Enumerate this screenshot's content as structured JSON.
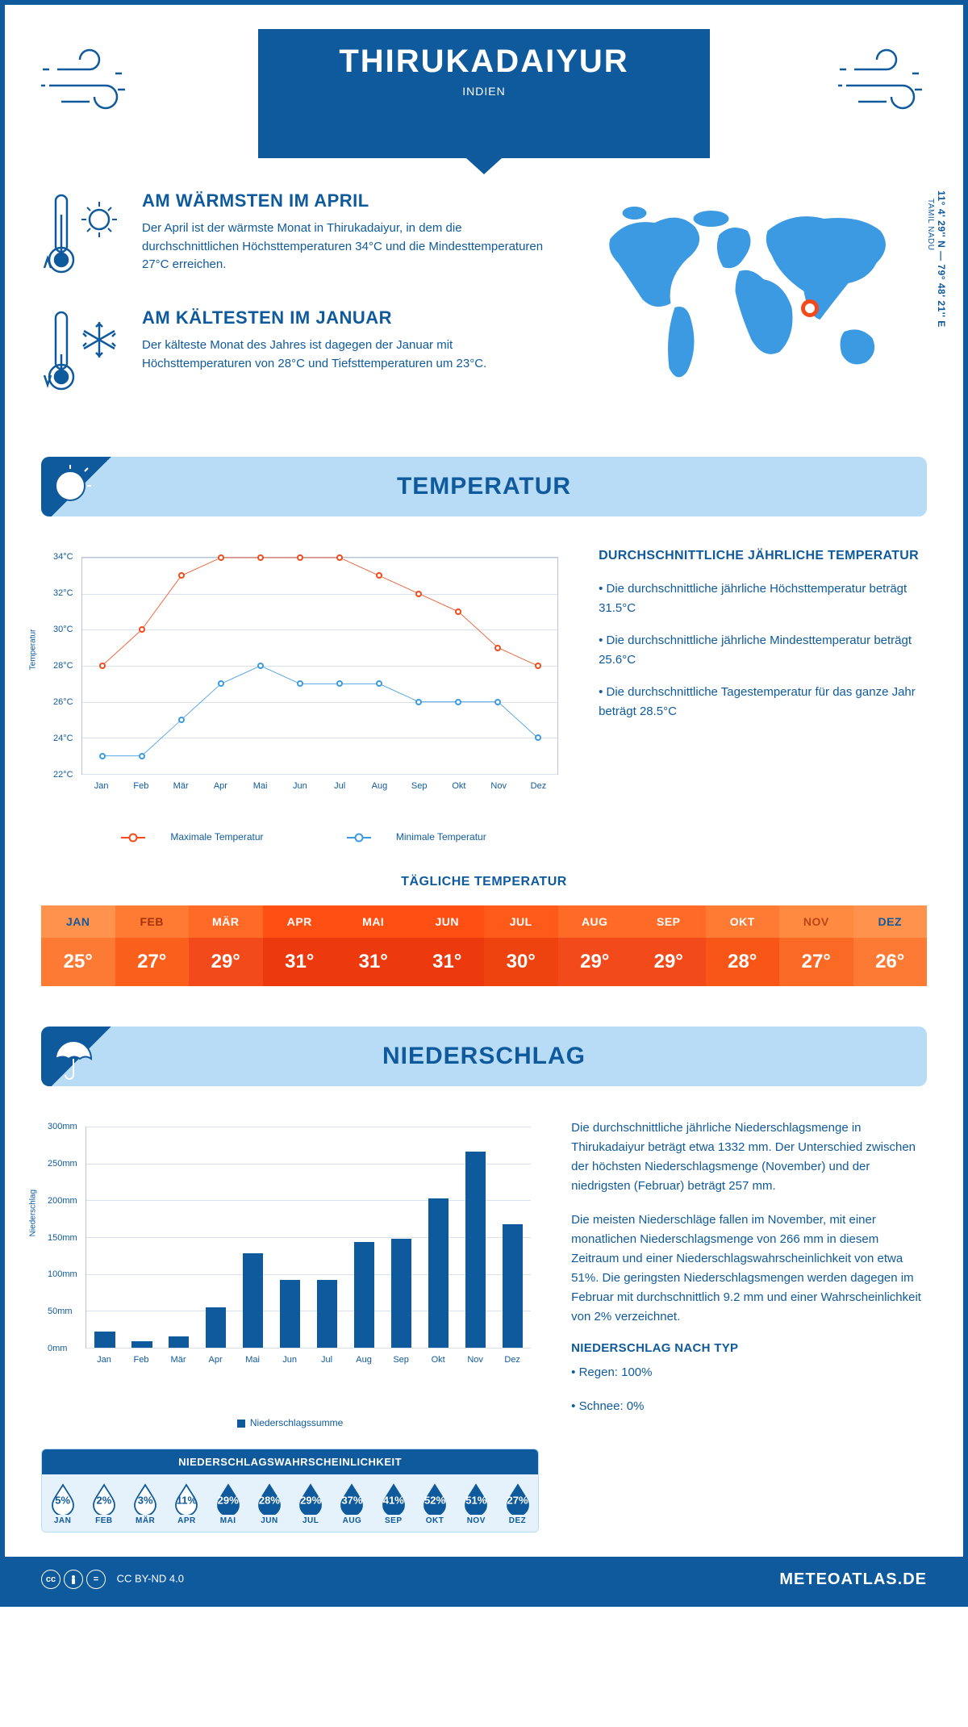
{
  "header": {
    "title": "THIRUKADAIYUR",
    "subtitle": "INDIEN"
  },
  "info_blocks": {
    "warm": {
      "title": "AM WÄRMSTEN IM APRIL",
      "text": "Der April ist der wärmste Monat in Thirukadaiyur, in dem die durchschnittlichen Höchsttemperaturen 34°C und die Mindesttemperaturen 27°C erreichen."
    },
    "cold": {
      "title": "AM KÄLTESTEN IM JANUAR",
      "text": "Der kälteste Monat des Jahres ist dagegen der Januar mit Höchsttemperaturen von 28°C und Tiefsttemperaturen um 23°C."
    }
  },
  "location": {
    "coords": "11° 4' 29'' N — 79° 48' 21'' E",
    "region": "TAMIL NADU"
  },
  "sections": {
    "temperature_title": "TEMPERATUR",
    "precip_title": "NIEDERSCHLAG"
  },
  "temp_chart": {
    "type": "line",
    "y_label": "Temperatur",
    "months": [
      "Jan",
      "Feb",
      "Mär",
      "Apr",
      "Mai",
      "Jun",
      "Jul",
      "Aug",
      "Sep",
      "Okt",
      "Nov",
      "Dez"
    ],
    "ylim": [
      22,
      34
    ],
    "ytick_step": 2,
    "yticks": [
      "22°C",
      "24°C",
      "26°C",
      "28°C",
      "30°C",
      "32°C",
      "34°C"
    ],
    "max_series": {
      "label": "Maximale Temperatur",
      "color": "#f24a1a",
      "values": [
        28,
        30,
        33,
        34,
        34,
        34,
        34,
        33,
        32,
        31,
        29,
        28
      ]
    },
    "min_series": {
      "label": "Minimale Temperatur",
      "color": "#3b9ae1",
      "values": [
        23,
        23,
        25,
        27,
        28,
        27,
        27,
        27,
        26,
        26,
        26,
        24
      ]
    },
    "grid_color": "#d8e2ed",
    "border_color": "#b8c5d6"
  },
  "temp_info": {
    "heading": "DURCHSCHNITTLICHE JÄHRLICHE TEMPERATUR",
    "b1": "• Die durchschnittliche jährliche Höchsttemperatur beträgt 31.5°C",
    "b2": "• Die durchschnittliche jährliche Mindesttemperatur beträgt 25.6°C",
    "b3": "• Die durchschnittliche Tagestemperatur für das ganze Jahr beträgt 28.5°C"
  },
  "daily": {
    "title": "TÄGLICHE TEMPERATUR",
    "months": [
      "JAN",
      "FEB",
      "MÄR",
      "APR",
      "MAI",
      "JUN",
      "JUL",
      "AUG",
      "SEP",
      "OKT",
      "NOV",
      "DEZ"
    ],
    "values": [
      "25°",
      "27°",
      "29°",
      "31°",
      "31°",
      "31°",
      "30°",
      "29°",
      "29°",
      "28°",
      "27°",
      "26°"
    ],
    "head_colors": [
      "#ff934d",
      "#ff7a33",
      "#ff6a26",
      "#ff4f12",
      "#ff4f12",
      "#ff4f12",
      "#ff5a19",
      "#ff6a26",
      "#ff6a26",
      "#ff7a33",
      "#ff8a40",
      "#ff934d"
    ],
    "val_colors": [
      "#fc7a33",
      "#fb5f1c",
      "#f24a1a",
      "#ec3a0e",
      "#ec3a0e",
      "#ec3a0e",
      "#ee420f",
      "#f24a1a",
      "#f24a1a",
      "#f85616",
      "#fb6a25",
      "#fc7a33"
    ],
    "text_colors": [
      "#0f5a9c",
      "#a33308",
      "#fff",
      "#fff",
      "#fff",
      "#fff",
      "#fff",
      "#fff",
      "#fff",
      "#fff",
      "#b84619",
      "#0f5a9c"
    ]
  },
  "precip_chart": {
    "type": "bar",
    "y_label": "Niederschlag",
    "legend": "Niederschlagssumme",
    "months": [
      "Jan",
      "Feb",
      "Mär",
      "Apr",
      "Mai",
      "Jun",
      "Jul",
      "Aug",
      "Sep",
      "Okt",
      "Nov",
      "Dez"
    ],
    "values": [
      22,
      9,
      15,
      55,
      128,
      92,
      92,
      143,
      148,
      203,
      266,
      168
    ],
    "ylim": [
      0,
      300
    ],
    "ytick_step": 50,
    "yticks": [
      "0mm",
      "50mm",
      "100mm",
      "150mm",
      "200mm",
      "250mm",
      "300mm"
    ],
    "bar_color": "#0f5a9c",
    "bar_width": 0.55,
    "grid_color": "#d8e2ed"
  },
  "precip_info": {
    "p1": "Die durchschnittliche jährliche Niederschlagsmenge in Thirukadaiyur beträgt etwa 1332 mm. Der Unterschied zwischen der höchsten Niederschlagsmenge (November) und der niedrigsten (Februar) beträgt 257 mm.",
    "p2": "Die meisten Niederschläge fallen im November, mit einer monatlichen Niederschlagsmenge von 266 mm in diesem Zeitraum und einer Niederschlagswahrscheinlichkeit von etwa 51%. Die geringsten Niederschlagsmengen werden dagegen im Februar mit durchschnittlich 9.2 mm und einer Wahrscheinlichkeit von 2% verzeichnet.",
    "type_heading": "NIEDERSCHLAG NACH TYP",
    "rain": "• Regen: 100%",
    "snow": "• Schnee: 0%"
  },
  "prob": {
    "title": "NIEDERSCHLAGSWAHRSCHEINLICHKEIT",
    "months": [
      "JAN",
      "FEB",
      "MÄR",
      "APR",
      "MAI",
      "JUN",
      "JUL",
      "AUG",
      "SEP",
      "OKT",
      "NOV",
      "DEZ"
    ],
    "values": [
      "5%",
      "2%",
      "3%",
      "11%",
      "29%",
      "28%",
      "29%",
      "37%",
      "41%",
      "52%",
      "51%",
      "27%"
    ],
    "pcts": [
      5,
      2,
      3,
      11,
      29,
      28,
      29,
      37,
      41,
      52,
      51,
      27
    ],
    "threshold": 15,
    "dark_color": "#0f5a9c",
    "light_color": "#ffffff",
    "border_color": "#b8dcf5",
    "bg_color": "#e5f1fb"
  },
  "footer": {
    "license": "CC BY-ND 4.0",
    "site": "METEOATLAS.DE"
  },
  "colors": {
    "primary": "#0f5a9c",
    "banner_bg": "#b8dcf5",
    "accent": "#f24a1a"
  }
}
